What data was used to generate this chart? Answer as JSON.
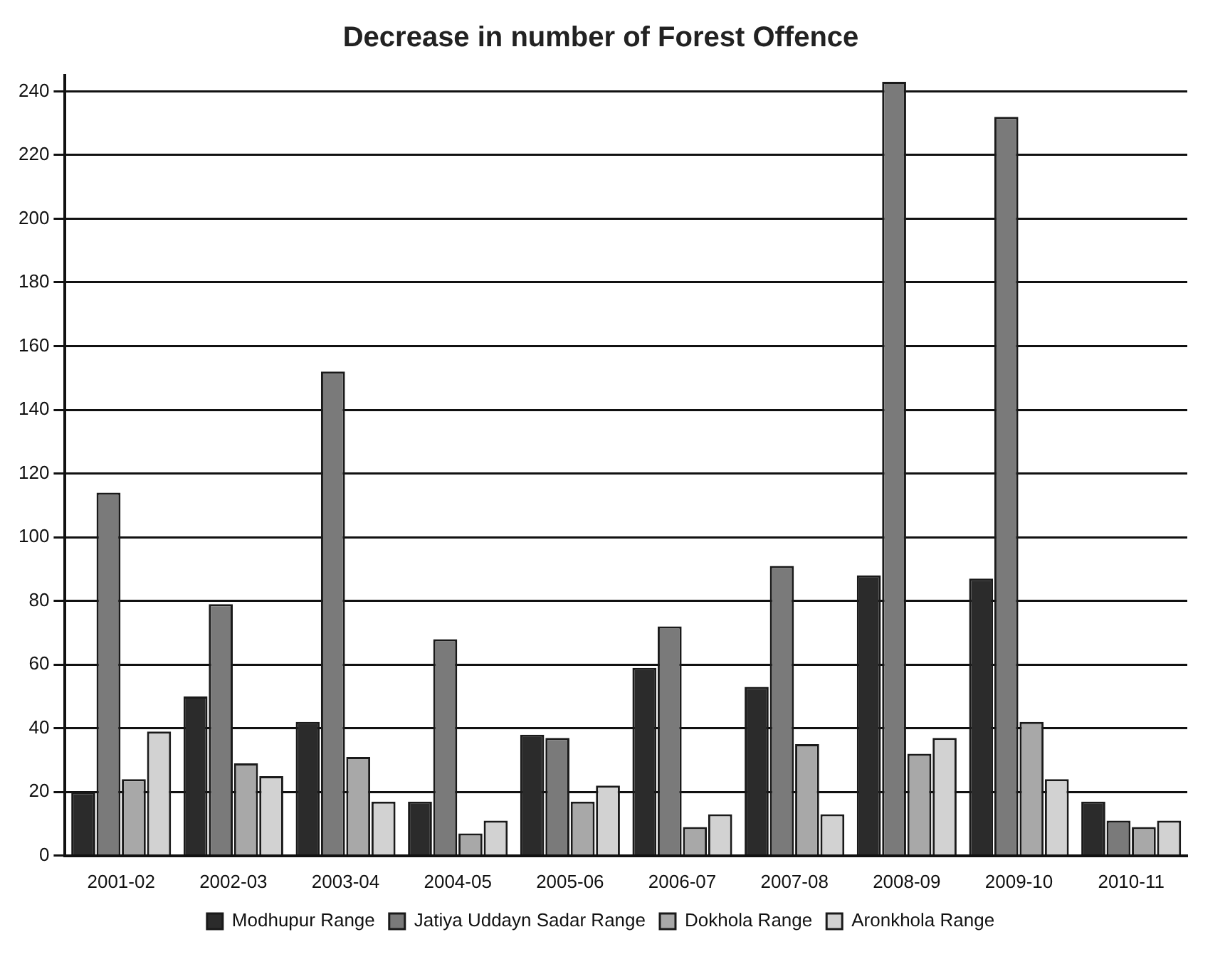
{
  "chart_data": {
    "type": "bar",
    "title": "Decrease in number of Forest Offence",
    "categories": [
      "2001-02",
      "2002-03",
      "2003-04",
      "2004-05",
      "2005-06",
      "2006-07",
      "2007-08",
      "2008-09",
      "2009-10",
      "2010-11"
    ],
    "series": [
      {
        "name": "Modhupur Range",
        "color": "#2b2b2b",
        "values": [
          20,
          50,
          42,
          17,
          38,
          59,
          53,
          88,
          87,
          17
        ]
      },
      {
        "name": "Jatiya Uddayn Sadar Range",
        "color": "#7a7a7a",
        "values": [
          114,
          79,
          152,
          68,
          37,
          72,
          91,
          243,
          232,
          11
        ]
      },
      {
        "name": "Dokhola Range",
        "color": "#a8a8a8",
        "values": [
          24,
          29,
          31,
          7,
          17,
          9,
          35,
          32,
          42,
          9
        ]
      },
      {
        "name": "Aronkhola Range",
        "color": "#d2d2d2",
        "values": [
          39,
          25,
          17,
          11,
          22,
          13,
          13,
          37,
          24,
          11
        ]
      }
    ],
    "ylim": [
      0,
      245
    ],
    "yticks": [
      0,
      20,
      40,
      60,
      80,
      100,
      120,
      140,
      160,
      180,
      200,
      220,
      240
    ],
    "grid": "y",
    "legend": "bottom"
  }
}
